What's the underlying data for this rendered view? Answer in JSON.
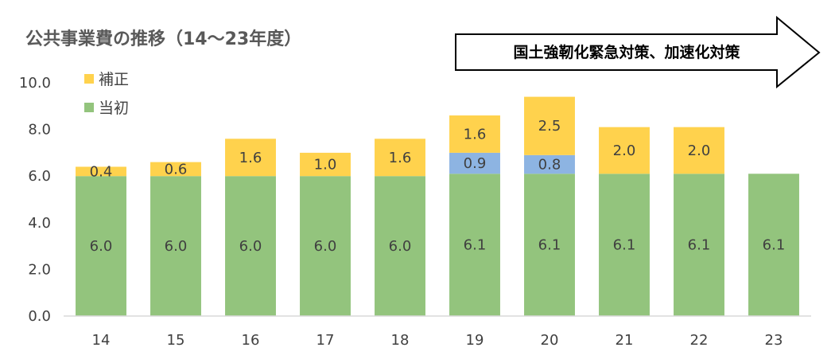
{
  "chart_data": {
    "type": "bar",
    "stacked": true,
    "title": "公共事業費の推移（14～23年度）",
    "xlabel": "",
    "ylabel": "",
    "ylim": [
      0,
      10
    ],
    "yticks": [
      "0.0",
      "2.0",
      "4.0",
      "6.0",
      "8.0",
      "10.0"
    ],
    "categories": [
      "14",
      "15",
      "16",
      "17",
      "18",
      "19",
      "20",
      "21",
      "22",
      "23"
    ],
    "series": [
      {
        "name": "当初",
        "color": "#93c47d",
        "values": [
          6.0,
          6.0,
          6.0,
          6.0,
          6.0,
          6.1,
          6.1,
          6.1,
          6.1,
          6.1
        ],
        "labels": [
          "6.0",
          "6.0",
          "6.0",
          "6.0",
          "6.0",
          "6.1",
          "6.1",
          "6.1",
          "6.1",
          "6.1"
        ]
      },
      {
        "name": "",
        "color": "#8db4e2",
        "values": [
          0,
          0,
          0,
          0,
          0,
          0.9,
          0.8,
          0,
          0,
          0
        ],
        "labels": [
          "",
          "",
          "",
          "",
          "",
          "0.9",
          "0.8",
          "",
          "",
          ""
        ]
      },
      {
        "name": "補正",
        "color": "#ffd24d",
        "values": [
          0.4,
          0.6,
          1.6,
          1.0,
          1.6,
          1.6,
          2.5,
          2.0,
          2.0,
          0
        ],
        "labels": [
          "0.4",
          "0.6",
          "1.6",
          "1.0",
          "1.6",
          "1.6",
          "2.5",
          "2.0",
          "2.0",
          ""
        ]
      }
    ],
    "legend": [
      "補正",
      "当初"
    ],
    "legend_position": "top-left",
    "grid": false,
    "annotation": "国土強靭化緊急対策、加速化対策"
  }
}
